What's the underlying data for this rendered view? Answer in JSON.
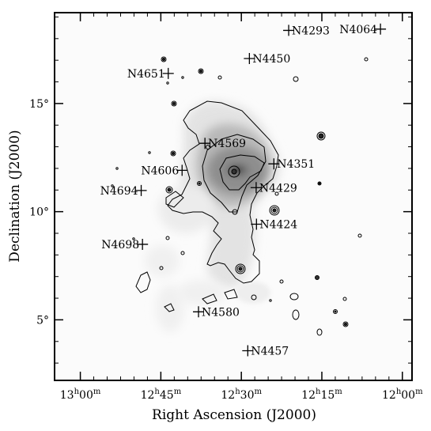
{
  "chart_data": {
    "type": "contour_map",
    "xlabel": "Right Ascension (J2000)",
    "ylabel": "Declination (J2000)",
    "x_unit": "hours (RA)",
    "y_unit": "degrees (Dec)",
    "xlim": [
      13.08,
      11.97
    ],
    "ylim": [
      2.2,
      19.2
    ],
    "grid": false,
    "x_ticks": [
      {
        "h": "13",
        "m": "00",
        "value": 13.0
      },
      {
        "h": "12",
        "m": "45",
        "value": 12.75
      },
      {
        "h": "12",
        "m": "30",
        "value": 12.5
      },
      {
        "h": "12",
        "m": "15",
        "value": 12.25
      },
      {
        "h": "12",
        "m": "00",
        "value": 12.0
      }
    ],
    "y_ticks": [
      {
        "label": "5°",
        "value": 5
      },
      {
        "label": "10°",
        "value": 10
      },
      {
        "label": "15°",
        "value": 15
      }
    ],
    "galaxies": [
      {
        "name": "N4064",
        "ra": 12.068,
        "dec": 18.44
      },
      {
        "name": "N4293",
        "ra": 12.353,
        "dec": 18.38
      },
      {
        "name": "N4450",
        "ra": 12.475,
        "dec": 17.08
      },
      {
        "name": "N4651",
        "ra": 12.727,
        "dec": 16.39
      },
      {
        "name": "N4569",
        "ra": 12.613,
        "dec": 13.16
      },
      {
        "name": "N4351",
        "ra": 12.399,
        "dec": 12.21
      },
      {
        "name": "N4606",
        "ra": 12.684,
        "dec": 11.91
      },
      {
        "name": "N4429",
        "ra": 12.454,
        "dec": 11.11
      },
      {
        "name": "N4694",
        "ra": 12.811,
        "dec": 10.98
      },
      {
        "name": "N4424",
        "ra": 12.453,
        "dec": 9.42
      },
      {
        "name": "N4698",
        "ra": 12.807,
        "dec": 8.49
      },
      {
        "name": "N4580",
        "ra": 12.633,
        "dec": 5.37
      },
      {
        "name": "N4457",
        "ra": 12.48,
        "dec": 3.57
      }
    ]
  }
}
